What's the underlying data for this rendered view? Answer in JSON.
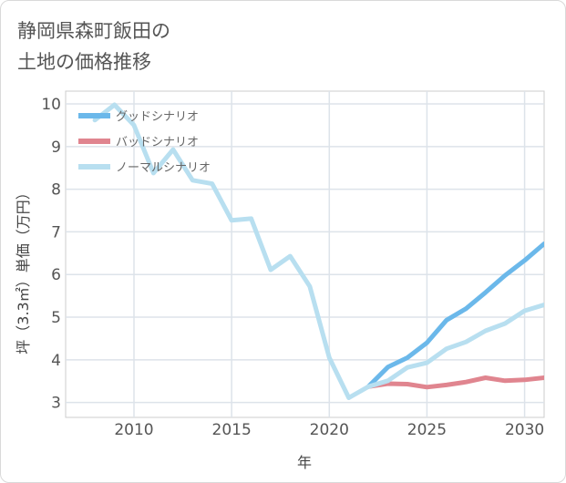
{
  "title": "静岡県森町飯田の\n土地の価格推移",
  "chart_data": {
    "type": "line",
    "title": "静岡県森町飯田の土地の価格推移",
    "xlabel": "年",
    "ylabel": "坪（3.3㎡）単価（万円）",
    "xlim": [
      2006.5,
      2031
    ],
    "ylim": [
      2.65,
      10.3
    ],
    "xticks": [
      2010,
      2015,
      2020,
      2025,
      2030
    ],
    "yticks": [
      3,
      4,
      5,
      6,
      7,
      8,
      9,
      10
    ],
    "grid": true,
    "legend_position": "top-left",
    "series": [
      {
        "name": "グッドシナリオ",
        "color": "#6bb8ea",
        "x": [
          2022,
          2023,
          2024,
          2025,
          2026,
          2027,
          2028,
          2029,
          2030,
          2031
        ],
        "y": [
          3.37,
          3.83,
          4.05,
          4.4,
          4.93,
          5.2,
          5.58,
          5.98,
          6.33,
          6.72
        ]
      },
      {
        "name": "バッドシナリオ",
        "color": "#e0858f",
        "x": [
          2022,
          2023,
          2024,
          2025,
          2026,
          2027,
          2028,
          2029,
          2030,
          2031
        ],
        "y": [
          3.37,
          3.44,
          3.43,
          3.36,
          3.41,
          3.48,
          3.58,
          3.51,
          3.53,
          3.58
        ]
      },
      {
        "name": "ノーマルシナリオ",
        "color": "#b8dff0",
        "x": [
          2008,
          2009,
          2010,
          2011,
          2012,
          2013,
          2014,
          2015,
          2016,
          2017,
          2018,
          2019,
          2020,
          2021,
          2022,
          2023,
          2024,
          2025,
          2026,
          2027,
          2028,
          2029,
          2030,
          2031
        ],
        "y": [
          9.62,
          9.98,
          9.5,
          8.38,
          8.93,
          8.21,
          8.13,
          7.27,
          7.31,
          6.11,
          6.43,
          5.72,
          4.05,
          3.11,
          3.37,
          3.51,
          3.82,
          3.93,
          4.26,
          4.42,
          4.68,
          4.85,
          5.15,
          5.29
        ]
      }
    ]
  }
}
